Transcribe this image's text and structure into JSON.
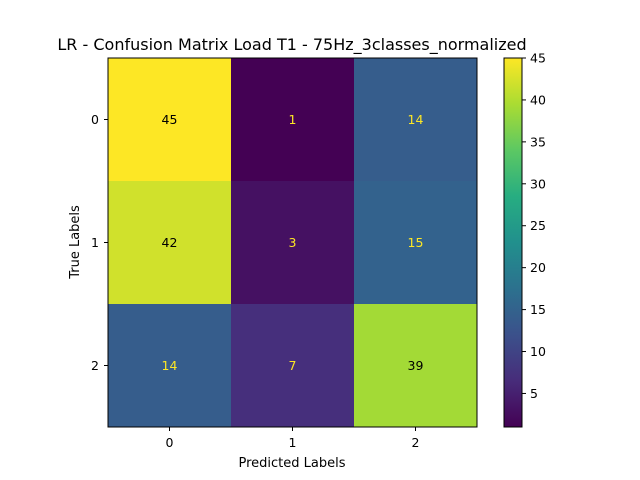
{
  "chart_data": {
    "type": "heatmap",
    "title": "LR - Confusion Matrix Load T1 - 75Hz_3classes_normalized",
    "xlabel": "Predicted Labels",
    "ylabel": "True Labels",
    "x_categories": [
      "0",
      "1",
      "2"
    ],
    "y_categories": [
      "0",
      "1",
      "2"
    ],
    "matrix": [
      [
        45,
        1,
        14
      ],
      [
        42,
        3,
        15
      ],
      [
        14,
        7,
        39
      ]
    ],
    "colormap": "viridis",
    "color_range": [
      1,
      45
    ],
    "colorbar_ticks": [
      "5",
      "10",
      "15",
      "20",
      "25",
      "30",
      "35",
      "40",
      "45"
    ],
    "text_color_light_cells": "#000000",
    "text_color_dark_cells": "#fde725"
  }
}
